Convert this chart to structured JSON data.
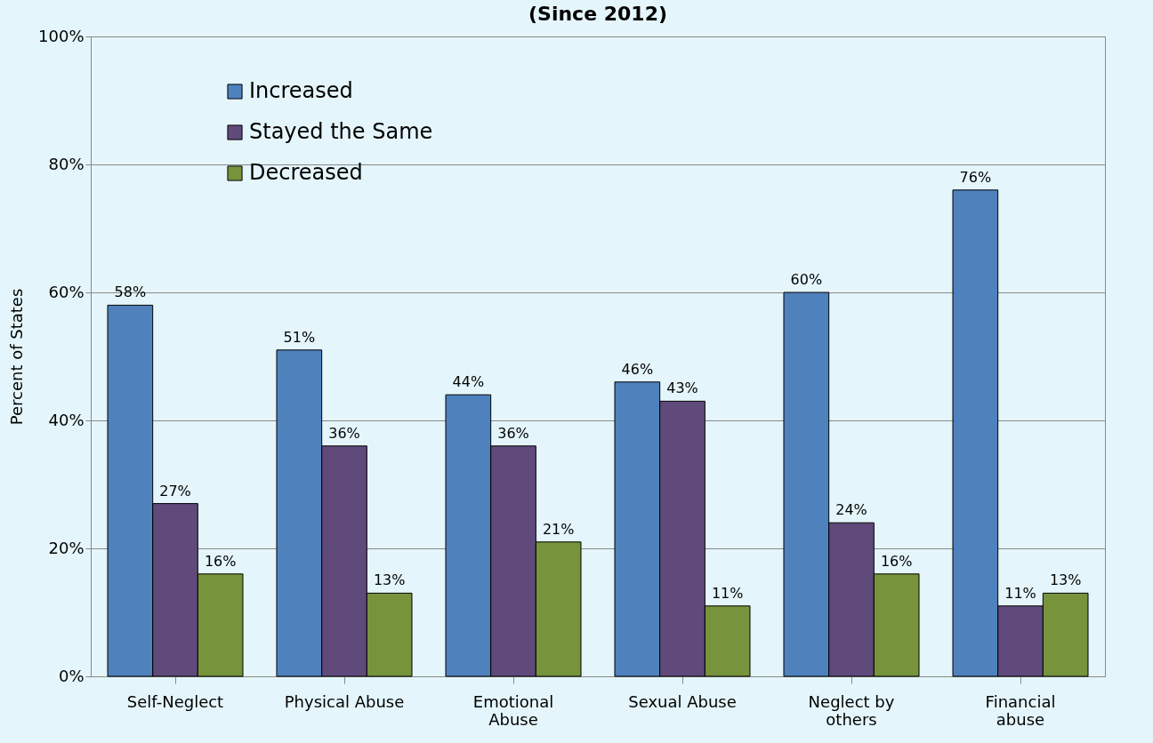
{
  "chart_data": {
    "type": "bar",
    "title": "(Since 2012)",
    "ylabel": "Percent of States",
    "categories": [
      "Self-Neglect",
      "Physical Abuse",
      "Emotional Abuse",
      "Sexual Abuse",
      "Neglect by others",
      "Financial abuse"
    ],
    "series": [
      {
        "name": "Increased",
        "color": "#4f81bd",
        "values": [
          58,
          51,
          44,
          46,
          60,
          76
        ],
        "value_labels": [
          "58%",
          "51%",
          "44%",
          "46%",
          "60%",
          "76%"
        ]
      },
      {
        "name": "Stayed the Same",
        "color": "#604a7b",
        "values": [
          27,
          36,
          36,
          43,
          24,
          11
        ],
        "value_labels": [
          "27%",
          "36%",
          "36%",
          "43%",
          "24%",
          "11%"
        ]
      },
      {
        "name": "Decreased",
        "color": "#77933c",
        "values": [
          16,
          13,
          21,
          11,
          16,
          13
        ],
        "value_labels": [
          "16%",
          "13%",
          "21%",
          "11%",
          "16%",
          "13%"
        ]
      }
    ],
    "ylim": [
      0,
      100
    ],
    "yticks": [
      {
        "value": 0,
        "label": "0%"
      },
      {
        "value": 20,
        "label": "20%"
      },
      {
        "value": 40,
        "label": "40%"
      },
      {
        "value": 60,
        "label": "60%"
      },
      {
        "value": 80,
        "label": "80%"
      },
      {
        "value": 100,
        "label": "100%"
      }
    ],
    "grid": "y",
    "legend": "top left"
  }
}
